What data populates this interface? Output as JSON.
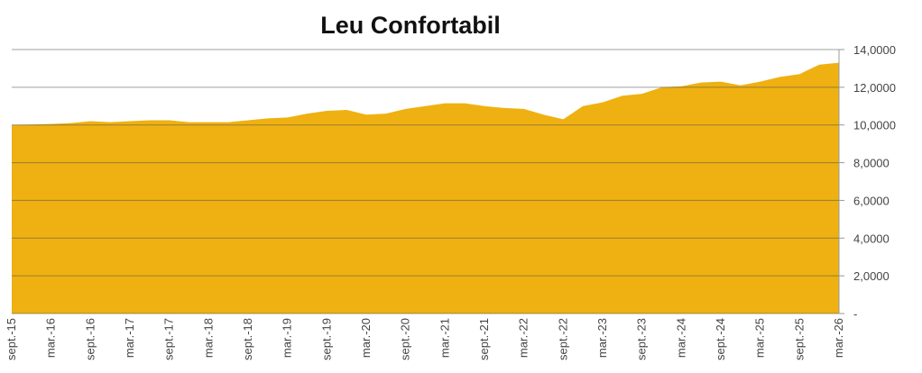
{
  "chart_data": {
    "type": "area",
    "title": "Leu Confortabil",
    "categories": [
      "sept.-15",
      null,
      "mar.-16",
      null,
      "sept.-16",
      null,
      "mar.-17",
      null,
      "sept.-17",
      null,
      "mar.-18",
      null,
      "sept.-18",
      null,
      "mar.-19",
      null,
      "sept.-19",
      null,
      "mar.-20",
      null,
      "sept.-20",
      null,
      "mar.-21",
      null,
      "sept.-21",
      null,
      "mar.-22",
      null,
      "sept.-22",
      null,
      "mar.-23",
      null,
      "sept.-23",
      null,
      "mar.-24",
      null,
      "sept.-24",
      null,
      "mar.-25",
      null,
      "sept.-25",
      null,
      "mar.-26"
    ],
    "values": [
      10.0,
      10.02,
      10.05,
      10.1,
      10.2,
      10.15,
      10.2,
      10.25,
      10.25,
      10.15,
      10.15,
      10.15,
      10.25,
      10.35,
      10.4,
      10.6,
      10.75,
      10.8,
      10.55,
      10.6,
      10.85,
      11.0,
      11.15,
      11.15,
      11.0,
      10.9,
      10.85,
      10.55,
      10.3,
      11.0,
      11.2,
      11.55,
      11.65,
      12.0,
      12.05,
      12.25,
      12.3,
      12.1,
      12.3,
      12.55,
      12.7,
      13.2,
      13.3
    ],
    "color": "#efb111",
    "ylim": [
      0,
      14
    ],
    "yticks": [
      {
        "value": 0,
        "label": "-"
      },
      {
        "value": 2,
        "label": "2,0000"
      },
      {
        "value": 4,
        "label": "4,0000"
      },
      {
        "value": 6,
        "label": "6,0000"
      },
      {
        "value": 8,
        "label": "8,0000"
      },
      {
        "value": 10,
        "label": "10,0000"
      },
      {
        "value": 12,
        "label": "12,0000"
      },
      {
        "value": 14,
        "label": "14,0000"
      }
    ],
    "grid": true
  }
}
